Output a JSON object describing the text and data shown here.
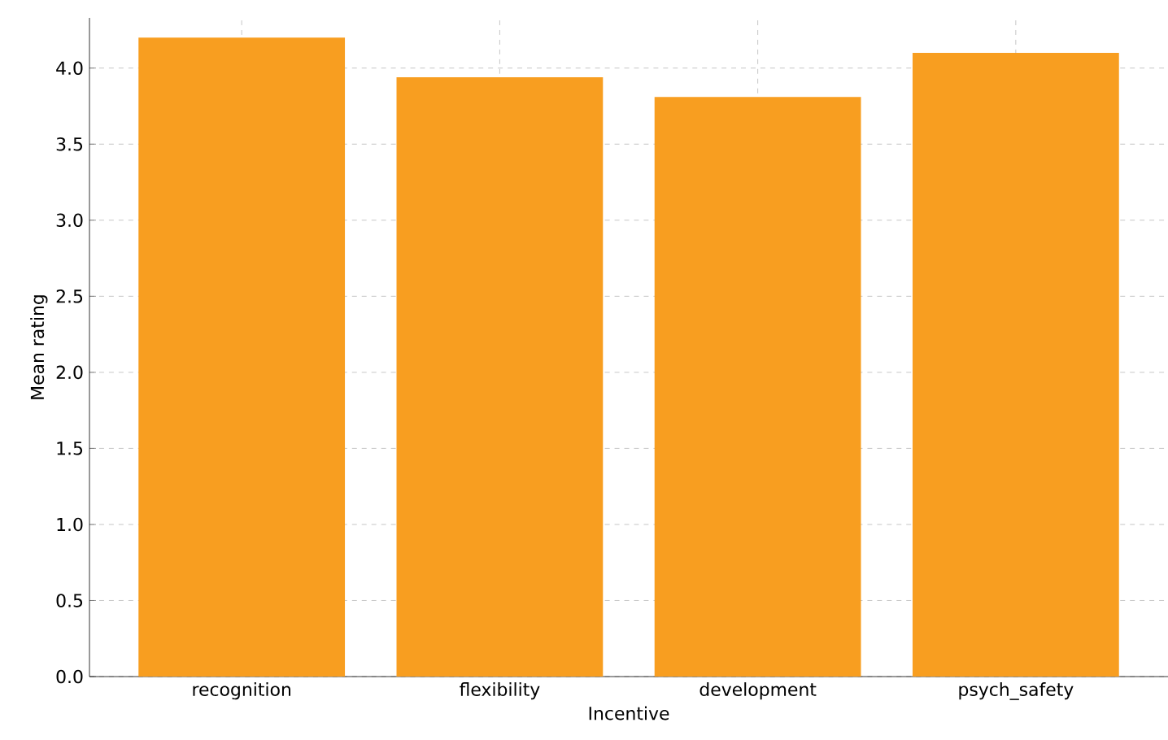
{
  "chart_data": {
    "type": "bar",
    "xlabel": "Incentive",
    "ylabel": "Mean rating",
    "categories": [
      "recognition",
      "flexibility",
      "development",
      "psych_safety"
    ],
    "values": [
      4.2,
      3.94,
      3.81,
      4.1
    ],
    "color": "#f89e20",
    "ylim": [
      0,
      4.33
    ],
    "yticks": [
      {
        "value": 0,
        "label": "0.0"
      },
      {
        "value": 0.5,
        "label": "0.5"
      },
      {
        "value": 1,
        "label": "1.0"
      },
      {
        "value": 1.5,
        "label": "1.5"
      },
      {
        "value": 2,
        "label": "2.0"
      },
      {
        "value": 2.5,
        "label": "2.5"
      },
      {
        "value": 3,
        "label": "3.0"
      },
      {
        "value": 3.5,
        "label": "3.5"
      },
      {
        "value": 4,
        "label": "4.0"
      }
    ],
    "grid": true
  }
}
